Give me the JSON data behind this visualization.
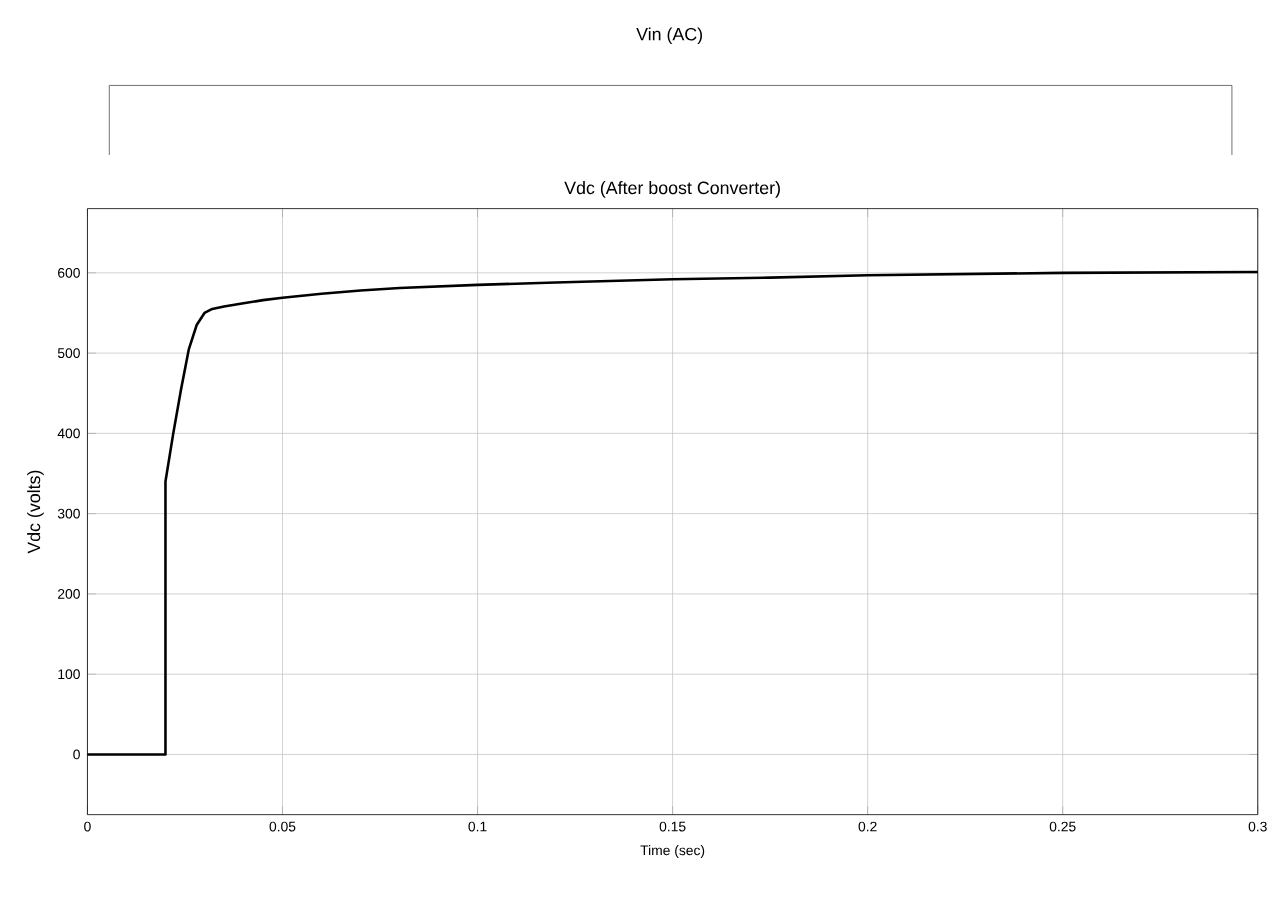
{
  "chart_data": {
    "type": "line",
    "title": "Vdc (After boost Converter)",
    "xlabel": "Time (sec)",
    "ylabel": "Vdc (volts)",
    "annotations": [
      "Vin (AC)"
    ],
    "x": [
      0,
      0.02,
      0.02,
      0.022,
      0.024,
      0.026,
      0.028,
      0.03,
      0.032,
      0.035,
      0.04,
      0.045,
      0.05,
      0.06,
      0.07,
      0.08,
      0.1,
      0.12,
      0.15,
      0.175,
      0.2,
      0.25,
      0.3
    ],
    "series": [
      {
        "color": "#000000",
        "values": [
          0,
          0,
          340,
          400,
          455,
          505,
          535,
          550,
          555,
          558,
          562,
          566,
          569,
          574,
          578,
          581,
          585,
          588,
          592,
          594,
          597,
          600,
          601
        ]
      }
    ],
    "xlim": [
      0,
      0.3
    ],
    "xticks": [
      0,
      0.05,
      0.1,
      0.15,
      0.2,
      0.25,
      0.3
    ],
    "ylim": [
      -75,
      680
    ],
    "yticks": [
      0,
      100,
      200,
      300,
      400,
      500,
      600
    ],
    "grid": true,
    "marker": "none",
    "line_style": "solid"
  }
}
